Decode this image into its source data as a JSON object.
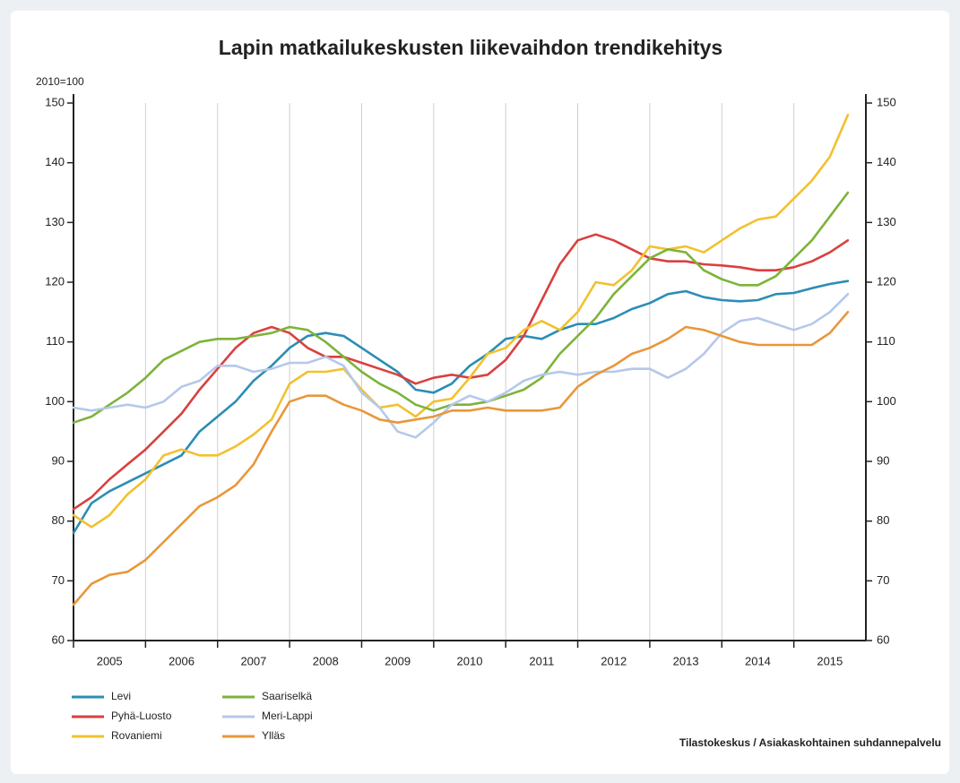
{
  "chart_data": {
    "type": "line",
    "title": "Lapin matkailukeskusten liikevaihdon trendikehitys",
    "y_label": "2010=100",
    "source": "Tilastokeskus / Asiakaskohtainen suhdannepalvelu",
    "x": [
      2005,
      2005.25,
      2005.5,
      2005.75,
      2006,
      2006.25,
      2006.5,
      2006.75,
      2007,
      2007.25,
      2007.5,
      2007.75,
      2008,
      2008.25,
      2008.5,
      2008.75,
      2009,
      2009.25,
      2009.5,
      2009.75,
      2010,
      2010.25,
      2010.5,
      2010.75,
      2011,
      2011.25,
      2011.5,
      2011.75,
      2012,
      2012.25,
      2012.5,
      2012.75,
      2013,
      2013.25,
      2013.5,
      2013.75,
      2014,
      2014.25,
      2014.5,
      2014.75,
      2015,
      2015.25,
      2015.5,
      2015.75
    ],
    "xlim": [
      2005,
      2016
    ],
    "xticks": [
      2005,
      2006,
      2007,
      2008,
      2009,
      2010,
      2011,
      2012,
      2013,
      2014,
      2015
    ],
    "ylim": [
      60,
      150
    ],
    "yticks": [
      60,
      70,
      80,
      90,
      100,
      110,
      120,
      130,
      140,
      150
    ],
    "y2lim": [
      60,
      150
    ],
    "y2ticks": [
      60,
      70,
      80,
      90,
      100,
      110,
      120,
      130,
      140,
      150
    ],
    "grid": "x",
    "legend": "bottom-left",
    "series": [
      {
        "name": "Levi",
        "color": "#2b8db5",
        "values": [
          78,
          83,
          85,
          86.5,
          88,
          89.5,
          91,
          95,
          97.5,
          100,
          103.5,
          106,
          109,
          111,
          111.5,
          111,
          109,
          107,
          105,
          102,
          101.5,
          103,
          106,
          108,
          110.5,
          111,
          110.5,
          112,
          113,
          113,
          114,
          115.5,
          116.5,
          118,
          118.5,
          117.5,
          117,
          116.8,
          117,
          118,
          118.2,
          119,
          119.7,
          120.2
        ]
      },
      {
        "name": "Pyhä-Luosto",
        "color": "#d9403f",
        "values": [
          82,
          84,
          87,
          89.5,
          92,
          95,
          98,
          102,
          105.5,
          109,
          111.5,
          112.5,
          111.5,
          109,
          107.5,
          107.5,
          106.5,
          105.5,
          104.5,
          103,
          104,
          104.5,
          104,
          104.5,
          107,
          111,
          117,
          123,
          127,
          128,
          127,
          125.5,
          124,
          123.5,
          123.5,
          123,
          122.8,
          122.5,
          122,
          122,
          122.5,
          123.5,
          125,
          127
        ]
      },
      {
        "name": "Rovaniemi",
        "color": "#f2c12e",
        "values": [
          81,
          79,
          81,
          84.5,
          87,
          91,
          92,
          91,
          91,
          92.5,
          94.5,
          97,
          103,
          105,
          105,
          105.5,
          102,
          99,
          99.5,
          97.5,
          100,
          100.5,
          104,
          108,
          109,
          112,
          113.5,
          112,
          115,
          120,
          119.5,
          122,
          126,
          125.5,
          126,
          125,
          127,
          129,
          130.5,
          131,
          134,
          137,
          141,
          148
        ]
      },
      {
        "name": "Saariselkä",
        "color": "#7db33a",
        "values": [
          96.5,
          97.5,
          99.5,
          101.5,
          104,
          107,
          108.5,
          110,
          110.5,
          110.5,
          111,
          111.5,
          112.5,
          112,
          110,
          107.5,
          105,
          103,
          101.5,
          99.5,
          98.5,
          99.5,
          99.5,
          100,
          101,
          102,
          104,
          108,
          111,
          114,
          118,
          121,
          124,
          125.5,
          125,
          122,
          120.5,
          119.5,
          119.5,
          121,
          124,
          127,
          131,
          135
        ]
      },
      {
        "name": "Meri-Lappi",
        "color": "#b5c8ea",
        "values": [
          99,
          98.5,
          99,
          99.5,
          99,
          100,
          102.5,
          103.5,
          106,
          106,
          105,
          105.5,
          106.5,
          106.5,
          107.5,
          106,
          101.5,
          99,
          95,
          94,
          96.5,
          99.5,
          101,
          100,
          101.5,
          103.5,
          104.5,
          105,
          104.5,
          105,
          105,
          105.5,
          105.5,
          104,
          105.5,
          108,
          111.5,
          113.5,
          114,
          113,
          112,
          113,
          115,
          118
        ]
      },
      {
        "name": "Ylläs",
        "color": "#e8973a",
        "values": [
          66,
          69.5,
          71,
          71.5,
          73.5,
          76.5,
          79.5,
          82.5,
          84,
          86,
          89.5,
          95,
          100,
          101,
          101,
          99.5,
          98.5,
          97,
          96.5,
          97,
          97.5,
          98.5,
          98.5,
          99,
          98.5,
          98.5,
          98.5,
          99,
          102.5,
          104.5,
          106,
          108,
          109,
          110.5,
          112.5,
          112,
          111,
          110,
          109.5,
          109.5,
          109.5,
          109.5,
          111.5,
          115
        ]
      }
    ]
  }
}
